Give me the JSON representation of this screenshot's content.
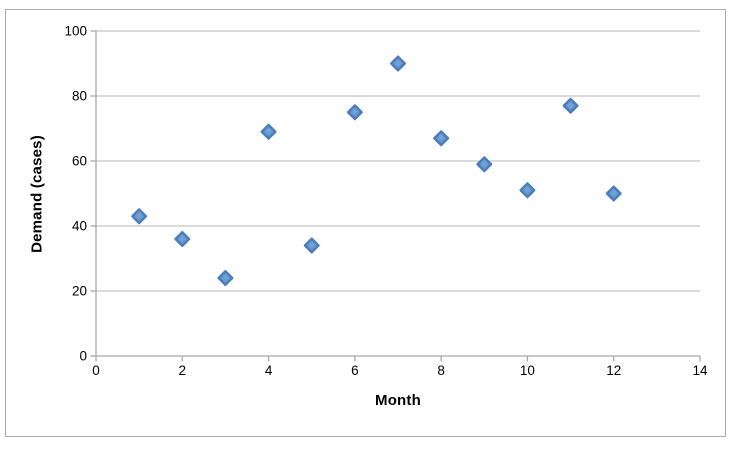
{
  "chart_data": {
    "type": "scatter",
    "title": "",
    "xlabel": "Month",
    "ylabel": "Demand (cases)",
    "x": [
      1,
      2,
      3,
      4,
      5,
      6,
      7,
      8,
      9,
      10,
      11,
      12
    ],
    "y": [
      43,
      36,
      24,
      69,
      34,
      75,
      90,
      67,
      59,
      51,
      77,
      50
    ],
    "xlim": [
      0,
      14
    ],
    "ylim": [
      0,
      100
    ],
    "x_ticks": [
      0,
      2,
      4,
      6,
      8,
      10,
      12,
      14
    ],
    "y_ticks": [
      0,
      20,
      40,
      60,
      80,
      100
    ],
    "grid": "horizontal-only",
    "legend_position": "none",
    "marker": "diamond",
    "colors": {
      "marker_fill": "#4e81bc",
      "marker_highlight": "#79a7db",
      "marker_edge": "#4a7db9",
      "gridline": "#c3c3c3",
      "axis": "#a8a8a8",
      "tick_text": "#000000",
      "frame_border": "#ababab"
    }
  }
}
